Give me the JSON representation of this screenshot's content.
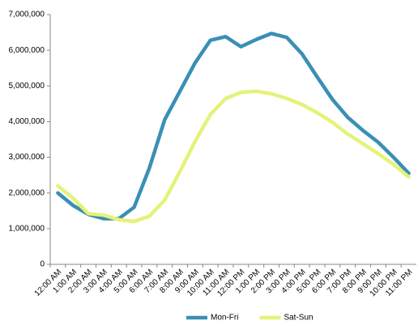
{
  "chart_data": {
    "type": "line",
    "categories": [
      "12:00 AM",
      "1:00 AM",
      "2:00 AM",
      "3:00 AM",
      "4:00 AM",
      "5:00 AM",
      "6:00 AM",
      "7:00 AM",
      "8:00 AM",
      "9:00 AM",
      "10:00 AM",
      "11:00 AM",
      "12:00 PM",
      "1:00 PM",
      "2:00 PM",
      "3:00 PM",
      "4:00 PM",
      "5:00 PM",
      "6:00 PM",
      "7:00 PM",
      "8:00 PM",
      "9:00 PM",
      "10:00 PM",
      "11:00 PM"
    ],
    "series": [
      {
        "name": "Mon-Fri",
        "color": "#3a8fb5",
        "values": [
          2000000,
          1650000,
          1400000,
          1280000,
          1280000,
          1600000,
          2700000,
          4050000,
          4850000,
          5650000,
          6280000,
          6380000,
          6100000,
          6300000,
          6470000,
          6360000,
          5900000,
          5250000,
          4620000,
          4120000,
          3750000,
          3420000,
          3000000,
          2550000
        ]
      },
      {
        "name": "Sat-Sun",
        "color": "#e5f27a",
        "values": [
          2200000,
          1850000,
          1420000,
          1380000,
          1250000,
          1200000,
          1350000,
          1800000,
          2600000,
          3450000,
          4200000,
          4650000,
          4820000,
          4850000,
          4780000,
          4650000,
          4480000,
          4250000,
          3980000,
          3650000,
          3380000,
          3100000,
          2800000,
          2450000
        ]
      }
    ],
    "ylim": [
      0,
      7000000
    ],
    "yticks": [
      {
        "value": 0,
        "label": "0"
      },
      {
        "value": 1000000,
        "label": "1,000,000"
      },
      {
        "value": 2000000,
        "label": "2,000,000"
      },
      {
        "value": 3000000,
        "label": "3,000,000"
      },
      {
        "value": 4000000,
        "label": "4,000,000"
      },
      {
        "value": 5000000,
        "label": "5,000,000"
      },
      {
        "value": 6000000,
        "label": "6,000,000"
      },
      {
        "value": 7000000,
        "label": "7,000,000"
      }
    ],
    "legend": "bottom"
  }
}
